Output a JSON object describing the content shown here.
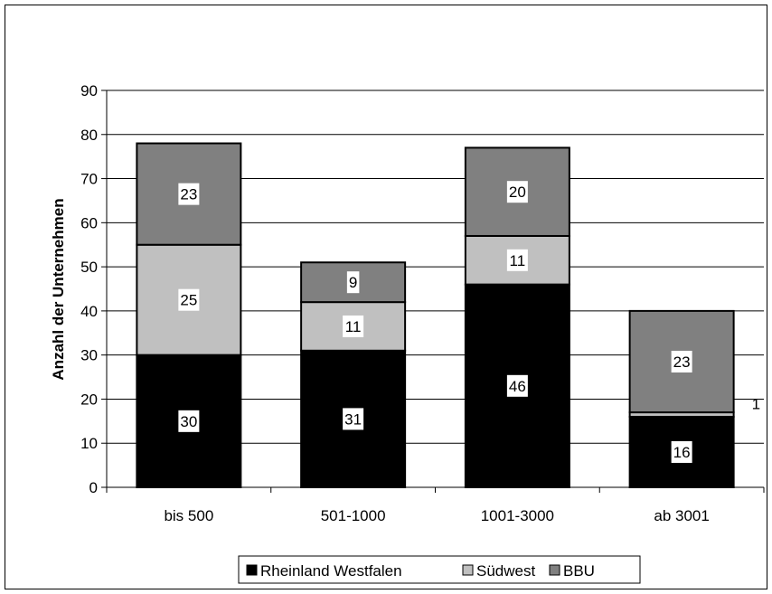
{
  "chart_data": {
    "type": "bar",
    "stacked": true,
    "title": "",
    "xlabel": "",
    "ylabel": "Anzahl der Unternehmen",
    "ylim": [
      0,
      90
    ],
    "ytick_step": 10,
    "grid": true,
    "legend_position": "bottom",
    "categories": [
      "bis 500",
      "501-1000",
      "1001-3000",
      "ab 3001"
    ],
    "series": [
      {
        "name": "Rheinland Westfalen",
        "color": "#000000",
        "values": [
          30,
          31,
          46,
          16
        ]
      },
      {
        "name": "Südwest",
        "color": "#c0c0c0",
        "values": [
          25,
          11,
          11,
          1
        ]
      },
      {
        "name": "BBU",
        "color": "#808080",
        "values": [
          23,
          9,
          20,
          23
        ]
      }
    ]
  }
}
